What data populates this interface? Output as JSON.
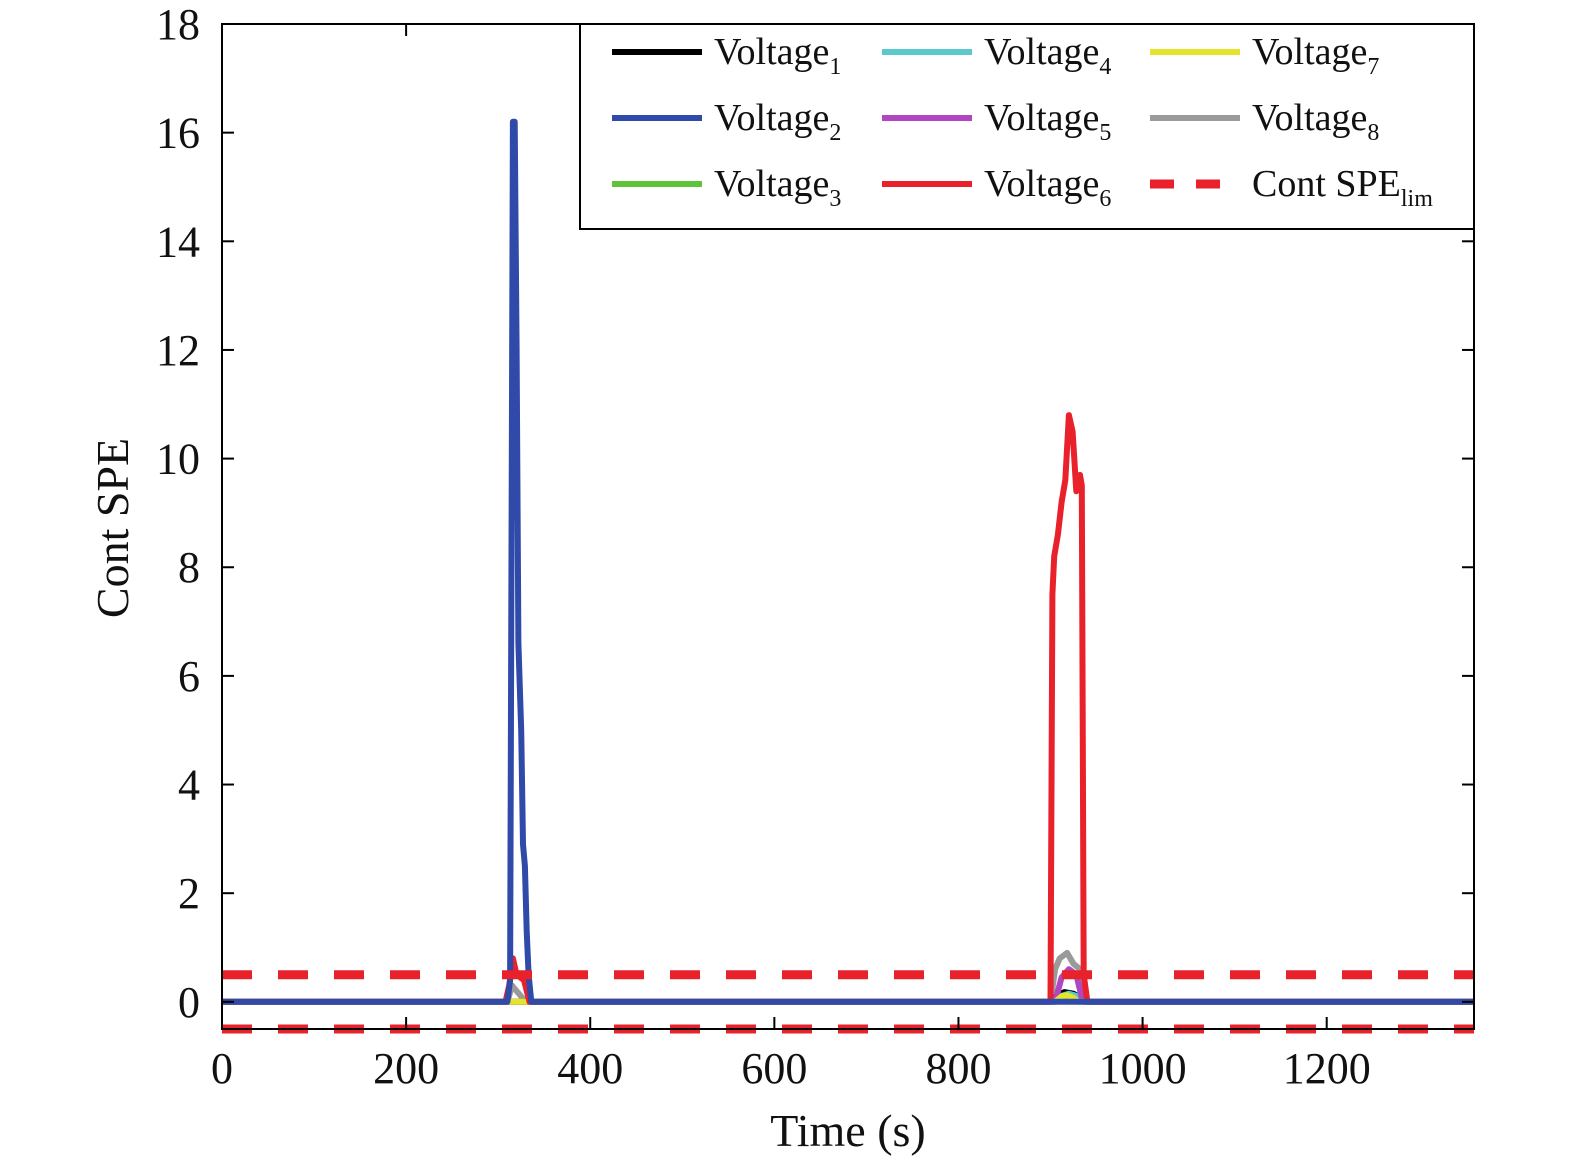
{
  "chart_data": {
    "type": "line",
    "title": "",
    "xlabel": "Time (s)",
    "ylabel": "Cont SPE",
    "xlim": [
      0,
      1360
    ],
    "ylim": [
      -0.5,
      18
    ],
    "xticks": [
      0,
      200,
      400,
      600,
      800,
      1000,
      1200
    ],
    "yticks": [
      0,
      2,
      4,
      6,
      8,
      10,
      12,
      14,
      16,
      18
    ],
    "grid": false,
    "legend_position": "top-right",
    "legend_columns": 3,
    "series": [
      {
        "name": "Voltage",
        "subscript": "1",
        "color": "#000000",
        "dash": false,
        "x": [
          0,
          900,
          905,
          915,
          925,
          935,
          940,
          1360
        ],
        "y": [
          0,
          0,
          0.08,
          0.18,
          0.15,
          0.05,
          0,
          0
        ]
      },
      {
        "name": "Voltage",
        "subscript": "2",
        "color": "#2f4aa8",
        "dash": false,
        "x": [
          0,
          310,
          313,
          316,
          318,
          320,
          322,
          325,
          327,
          329,
          331,
          333,
          336,
          1360
        ],
        "y": [
          0,
          0,
          0.4,
          16.2,
          16.2,
          12,
          6.6,
          5,
          2.9,
          2.5,
          1.3,
          0.5,
          0,
          0
        ]
      },
      {
        "name": "Voltage",
        "subscript": "3",
        "color": "#5fc43a",
        "dash": false,
        "x": [
          0,
          900,
          910,
          920,
          930,
          940,
          1360
        ],
        "y": [
          0,
          0,
          0.05,
          0.08,
          0.05,
          0,
          0
        ]
      },
      {
        "name": "Voltage",
        "subscript": "4",
        "color": "#5bc9cc",
        "dash": false,
        "x": [
          0,
          900,
          910,
          920,
          930,
          940,
          1360
        ],
        "y": [
          0,
          0,
          0.1,
          0.15,
          0.1,
          0,
          0
        ]
      },
      {
        "name": "Voltage",
        "subscript": "5",
        "color": "#b146c2",
        "dash": false,
        "x": [
          0,
          905,
          912,
          920,
          928,
          935,
          1360
        ],
        "y": [
          0,
          0,
          0.45,
          0.6,
          0.5,
          0,
          0
        ]
      },
      {
        "name": "Voltage",
        "subscript": "6",
        "color": "#e8212b",
        "dash": false,
        "x": [
          0,
          308,
          312,
          316,
          320,
          324,
          328,
          334,
          900,
          902,
          904,
          908,
          912,
          916,
          920,
          924,
          928,
          932,
          934,
          936,
          940,
          1360
        ],
        "y": [
          0,
          0,
          0.3,
          0.8,
          0.5,
          0.45,
          0.4,
          0,
          0,
          7.5,
          8.2,
          8.6,
          9.2,
          9.6,
          10.8,
          10.5,
          9.4,
          9.7,
          9.5,
          0.5,
          0,
          0
        ]
      },
      {
        "name": "Voltage",
        "subscript": "7",
        "color": "#e4e52a",
        "dash": false,
        "x": [
          0,
          905,
          912,
          918,
          924,
          930,
          1360
        ],
        "y": [
          0,
          0,
          0.1,
          0.12,
          0.08,
          0,
          0
        ]
      },
      {
        "name": "Voltage",
        "subscript": "8",
        "color": "#9a9a9a",
        "dash": false,
        "x": [
          0,
          310,
          315,
          320,
          330,
          900,
          905,
          910,
          918,
          925,
          932,
          940,
          1360
        ],
        "y": [
          0,
          0,
          0.3,
          0.2,
          0,
          0,
          0.6,
          0.8,
          0.9,
          0.7,
          0.6,
          0,
          0
        ]
      },
      {
        "name": "Cont SPE",
        "subscript": "lim",
        "color": "#e8212b",
        "dash": true,
        "x": [
          0,
          1360
        ],
        "y": [
          0.5,
          0.5
        ]
      },
      {
        "name": "",
        "subscript": "",
        "color": "#e8212b",
        "dash": true,
        "legend": false,
        "x": [
          0,
          1360
        ],
        "y": [
          -0.5,
          -0.5
        ]
      }
    ]
  }
}
